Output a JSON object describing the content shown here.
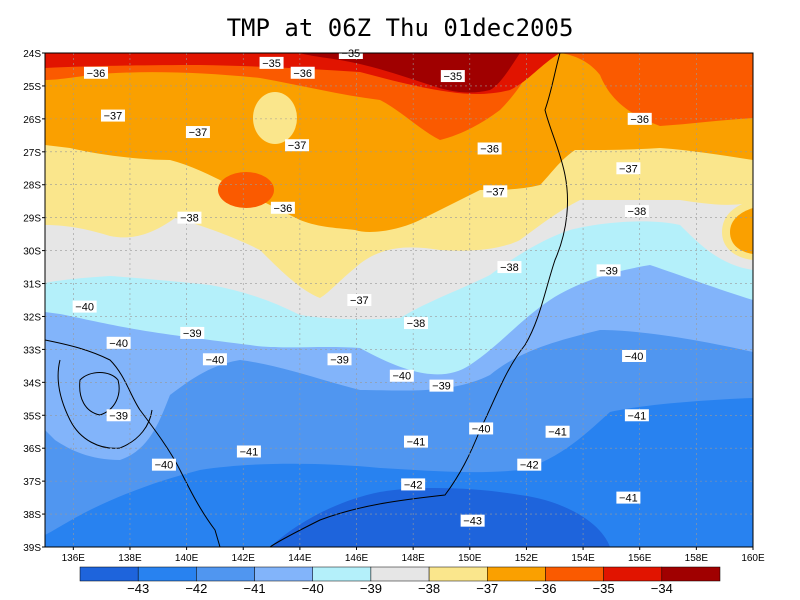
{
  "title": "TMP at 06Z Thu 01dec2005",
  "lat_ticks": [
    "24S",
    "25S",
    "26S",
    "27S",
    "28S",
    "29S",
    "30S",
    "31S",
    "32S",
    "33S",
    "34S",
    "35S",
    "36S",
    "37S",
    "38S",
    "39S"
  ],
  "lon_ticks": [
    "136E",
    "138E",
    "140E",
    "142E",
    "144E",
    "146E",
    "148E",
    "150E",
    "152E",
    "154E",
    "156E",
    "158E",
    "160E"
  ],
  "colors": {
    "-43": "#1e64dc",
    "-42": "#2882f0",
    "-41": "#5096f0",
    "-40": "#82b4fa",
    "-39": "#b4f0fa",
    "-38": "#e6e6e6",
    "-37": "#fae68c",
    "-36": "#faa000",
    "-35": "#fa5a00",
    "-34": "#e11400",
    "-33": "#a00000"
  },
  "colorbar": {
    "colors": [
      "#1e64dc",
      "#2882f0",
      "#5096f0",
      "#82b4fa",
      "#b4f0fa",
      "#e6e6e6",
      "#fae68c",
      "#faa000",
      "#fa5a00",
      "#e11400",
      "#a00000"
    ],
    "labels": [
      "-43",
      "-42",
      "-41",
      "-40",
      "-39",
      "-38",
      "-37",
      "-36",
      "-35",
      "-34"
    ]
  },
  "contour_labels": [
    {
      "text": "-35",
      "lon": 145.8,
      "lat": -24.0
    },
    {
      "text": "-35",
      "lon": 143.0,
      "lat": -24.3
    },
    {
      "text": "-36",
      "lon": 136.8,
      "lat": -24.6
    },
    {
      "text": "-36",
      "lon": 144.1,
      "lat": -24.6
    },
    {
      "text": "-35",
      "lon": 149.4,
      "lat": -24.7
    },
    {
      "text": "-37",
      "lon": 137.4,
      "lat": -25.9
    },
    {
      "text": "-37",
      "lon": 140.4,
      "lat": -26.4
    },
    {
      "text": "-37",
      "lon": 143.9,
      "lat": -26.8
    },
    {
      "text": "-36",
      "lon": 150.7,
      "lat": -26.9
    },
    {
      "text": "-36",
      "lon": 156.0,
      "lat": -26.0
    },
    {
      "text": "-37",
      "lon": 155.6,
      "lat": -27.5
    },
    {
      "text": "-37",
      "lon": 150.9,
      "lat": -28.2
    },
    {
      "text": "-36",
      "lon": 143.4,
      "lat": -28.7
    },
    {
      "text": "-38",
      "lon": 140.1,
      "lat": -29.0
    },
    {
      "text": "-38",
      "lon": 155.9,
      "lat": -28.8
    },
    {
      "text": "-38",
      "lon": 151.4,
      "lat": -30.5
    },
    {
      "text": "-39",
      "lon": 154.9,
      "lat": -30.6
    },
    {
      "text": "-40",
      "lon": 136.4,
      "lat": -31.7
    },
    {
      "text": "-37",
      "lon": 146.1,
      "lat": -31.5
    },
    {
      "text": "-38",
      "lon": 148.1,
      "lat": -32.2
    },
    {
      "text": "-39",
      "lon": 140.2,
      "lat": -32.5
    },
    {
      "text": "-40",
      "lon": 137.6,
      "lat": -32.8
    },
    {
      "text": "-40",
      "lon": 141.0,
      "lat": -33.3
    },
    {
      "text": "-39",
      "lon": 145.4,
      "lat": -33.3
    },
    {
      "text": "-40",
      "lon": 155.8,
      "lat": -33.2
    },
    {
      "text": "-40",
      "lon": 147.6,
      "lat": -33.8
    },
    {
      "text": "-39",
      "lon": 149.0,
      "lat": -34.1
    },
    {
      "text": "-39",
      "lon": 137.6,
      "lat": -35.0
    },
    {
      "text": "-41",
      "lon": 155.9,
      "lat": -35.0
    },
    {
      "text": "-40",
      "lon": 150.4,
      "lat": -35.4
    },
    {
      "text": "-41",
      "lon": 153.1,
      "lat": -35.5
    },
    {
      "text": "-41",
      "lon": 148.1,
      "lat": -35.8
    },
    {
      "text": "-41",
      "lon": 142.2,
      "lat": -36.1
    },
    {
      "text": "-40",
      "lon": 139.2,
      "lat": -36.5
    },
    {
      "text": "-42",
      "lon": 152.1,
      "lat": -36.5
    },
    {
      "text": "-42",
      "lon": 148.0,
      "lat": -37.1
    },
    {
      "text": "-41",
      "lon": 155.6,
      "lat": -37.5
    },
    {
      "text": "-43",
      "lon": 150.1,
      "lat": -38.2
    }
  ]
}
